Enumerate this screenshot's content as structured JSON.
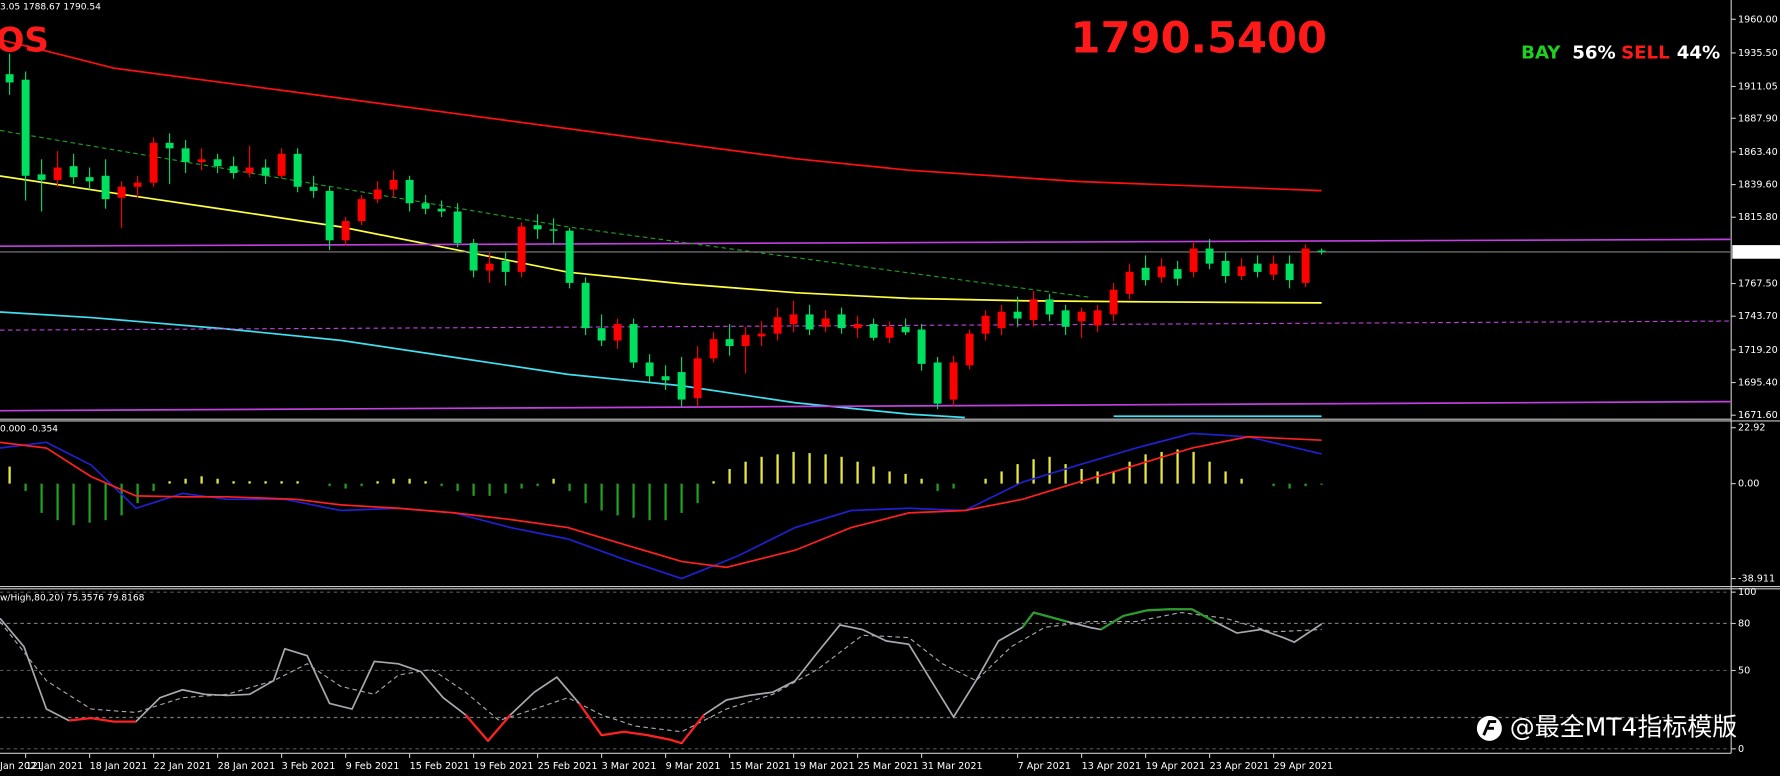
{
  "chart_data": [
    {
      "type": "candlestick",
      "header": "3.05 1788.67 1790.54",
      "symbol_text": "OS",
      "price_text": "1790.5400",
      "buy_label": "BAY",
      "buy_percent": "56%",
      "sell_label": "SELL",
      "sell_percent": "44%",
      "cut_date_label": "Jan 2021",
      "categories": [
        null,
        "12 Jan 2021",
        null,
        null,
        null,
        "18 Jan 2021",
        null,
        null,
        null,
        "22 Jan 2021",
        null,
        null,
        null,
        "28 Jan 2021",
        null,
        null,
        null,
        "3 Feb 2021",
        null,
        null,
        null,
        "9 Feb 2021",
        null,
        null,
        null,
        "15 Feb 2021",
        null,
        null,
        null,
        "19 Feb 2021",
        null,
        null,
        null,
        "25 Feb 2021",
        null,
        null,
        null,
        "3 Mar 2021",
        null,
        null,
        null,
        "9 Mar 2021",
        null,
        null,
        null,
        "15 Mar 2021",
        null,
        null,
        null,
        "19 Mar 2021",
        null,
        null,
        null,
        "25 Mar 2021",
        null,
        null,
        null,
        "31 Mar 2021",
        null,
        null,
        null,
        null,
        null,
        "7 Apr 2021",
        null,
        null,
        null,
        "13 Apr 2021",
        null,
        null,
        null,
        "19 Apr 2021",
        null,
        null,
        null,
        "23 Apr 2021",
        null,
        null,
        null,
        "29 Apr 2021",
        null,
        null,
        null
      ],
      "ohlc": [
        [
          1920,
          1935,
          1905,
          1914
        ],
        [
          1916,
          1922,
          1828,
          1846
        ],
        [
          1847,
          1858,
          1820,
          1843
        ],
        [
          1843,
          1864,
          1838,
          1852
        ],
        [
          1853,
          1862,
          1840,
          1845
        ],
        [
          1845,
          1852,
          1836,
          1842
        ],
        [
          1846,
          1858,
          1822,
          1829
        ],
        [
          1830,
          1842,
          1808,
          1838
        ],
        [
          1838,
          1846,
          1830,
          1841
        ],
        [
          1841,
          1874,
          1838,
          1870
        ],
        [
          1870,
          1877,
          1840,
          1866
        ],
        [
          1866,
          1872,
          1848,
          1856
        ],
        [
          1856,
          1866,
          1850,
          1858
        ],
        [
          1858,
          1862,
          1848,
          1853
        ],
        [
          1853,
          1860,
          1844,
          1848
        ],
        [
          1848,
          1868,
          1845,
          1852
        ],
        [
          1852,
          1858,
          1840,
          1846
        ],
        [
          1846,
          1866,
          1844,
          1862
        ],
        [
          1862,
          1866,
          1834,
          1838
        ],
        [
          1838,
          1846,
          1830,
          1835
        ],
        [
          1835,
          1838,
          1792,
          1799
        ],
        [
          1799,
          1816,
          1795,
          1813
        ],
        [
          1813,
          1832,
          1810,
          1829
        ],
        [
          1829,
          1842,
          1826,
          1836
        ],
        [
          1836,
          1850,
          1830,
          1843
        ],
        [
          1843,
          1846,
          1820,
          1826
        ],
        [
          1826,
          1832,
          1818,
          1822
        ],
        [
          1822,
          1828,
          1816,
          1820
        ],
        [
          1820,
          1826,
          1794,
          1797
        ],
        [
          1797,
          1800,
          1772,
          1777
        ],
        [
          1777,
          1790,
          1768,
          1782
        ],
        [
          1784,
          1790,
          1766,
          1776
        ],
        [
          1776,
          1812,
          1772,
          1809
        ],
        [
          1810,
          1818,
          1800,
          1807
        ],
        [
          1807,
          1815,
          1796,
          1806
        ],
        [
          1806,
          1808,
          1764,
          1768
        ],
        [
          1768,
          1772,
          1730,
          1735
        ],
        [
          1735,
          1745,
          1722,
          1726
        ],
        [
          1726,
          1742,
          1720,
          1738
        ],
        [
          1738,
          1742,
          1706,
          1710
        ],
        [
          1710,
          1716,
          1696,
          1700
        ],
        [
          1700,
          1708,
          1690,
          1697
        ],
        [
          1703,
          1714,
          1678,
          1683
        ],
        [
          1684,
          1722,
          1678,
          1713
        ],
        [
          1713,
          1732,
          1710,
          1727
        ],
        [
          1727,
          1738,
          1715,
          1722
        ],
        [
          1722,
          1736,
          1702,
          1730
        ],
        [
          1729,
          1740,
          1722,
          1731
        ],
        [
          1731,
          1750,
          1726,
          1743
        ],
        [
          1738,
          1755,
          1732,
          1745
        ],
        [
          1745,
          1752,
          1730,
          1734
        ],
        [
          1736,
          1748,
          1732,
          1742
        ],
        [
          1745,
          1750,
          1731,
          1735
        ],
        [
          1735,
          1744,
          1728,
          1738
        ],
        [
          1738,
          1742,
          1726,
          1728
        ],
        [
          1728,
          1740,
          1724,
          1736
        ],
        [
          1736,
          1742,
          1730,
          1732
        ],
        [
          1734,
          1738,
          1704,
          1709
        ],
        [
          1710,
          1714,
          1676,
          1680
        ],
        [
          1683,
          1715,
          1678,
          1710
        ],
        [
          1708,
          1734,
          1705,
          1731
        ],
        [
          1731,
          1748,
          1726,
          1744
        ],
        [
          1735,
          1752,
          1730,
          1747
        ],
        [
          1747,
          1758,
          1736,
          1742
        ],
        [
          1741,
          1762,
          1736,
          1756
        ],
        [
          1756,
          1760,
          1740,
          1745
        ],
        [
          1748,
          1752,
          1730,
          1736
        ],
        [
          1740,
          1750,
          1728,
          1747
        ],
        [
          1737,
          1752,
          1732,
          1748
        ],
        [
          1745,
          1768,
          1740,
          1763
        ],
        [
          1760,
          1782,
          1756,
          1776
        ],
        [
          1779,
          1788,
          1766,
          1770
        ],
        [
          1772,
          1786,
          1768,
          1780
        ],
        [
          1778,
          1784,
          1766,
          1771
        ],
        [
          1776,
          1798,
          1772,
          1793
        ],
        [
          1793,
          1800,
          1778,
          1782
        ],
        [
          1784,
          1790,
          1768,
          1773
        ],
        [
          1773,
          1786,
          1770,
          1780
        ],
        [
          1782,
          1788,
          1772,
          1776
        ],
        [
          1774,
          1788,
          1770,
          1782
        ],
        [
          1782,
          1788,
          1764,
          1770
        ],
        [
          1768,
          1796,
          1765,
          1793
        ],
        [
          1791.5,
          1793.05,
          1788.67,
          1790.54
        ]
      ],
      "up_color": "#ff0000",
      "down_color": "#00e060",
      "bid": 1790.54,
      "bid_color": "#808080",
      "lines": [
        {
          "color": "#ff1010",
          "x": [
            -0.6,
            2.3,
            6.5,
            17.2,
            27.8,
            38.4,
            49.1,
            56.2,
            66.8,
            82
          ],
          "values": [
            1945.1,
            1936.9,
            1924.5,
            1907.9,
            1891.4,
            1874.9,
            1858.4,
            1850.1,
            1841.8,
            1835.2
          ]
        },
        {
          "color": "#ffff40",
          "x": [
            -0.6,
            6.5,
            13.6,
            20.7,
            27.8,
            34.9,
            42,
            49.1,
            56.2,
            63.3,
            70.4,
            82
          ],
          "values": [
            1845.9,
            1833.4,
            1821.2,
            1808.8,
            1792.3,
            1775.8,
            1767.4,
            1760.8,
            1756.7,
            1755.0,
            1754.2,
            1753.4
          ]
        },
        {
          "color": "#40e0f0",
          "x": [
            -0.6,
            5.1,
            13.6,
            20.7,
            27.8,
            34.9,
            42,
            49.1,
            56.2,
            59.7,
            64,
            69,
            82
          ],
          "values": [
            1746.8,
            1742.7,
            1734.4,
            1726.1,
            1713.7,
            1701.3,
            1693.1,
            1680.7,
            1672.4,
            1669.9,
            null,
            1670.8,
            1670.8
          ]
        },
        {
          "color": "#c040e0",
          "x": [
            -0.6,
            107.6
          ],
          "values": [
            1794.7,
            1799.7
          ]
        },
        {
          "color": "#c040e0",
          "x": [
            -0.6,
            107.6
          ],
          "values": [
            1674.9,
            1681.5
          ]
        },
        {
          "color": "#c040e0",
          "dash": true,
          "x": [
            -0.6,
            107.6
          ],
          "values": [
            1733.6,
            1740.2
          ]
        },
        {
          "color": "#20a020",
          "dash": true,
          "x": [
            -0.6,
            34.9,
            67.5
          ],
          "values": [
            1879.0,
            1808.8,
            1757.5
          ]
        }
      ],
      "xlim": [
        -0.6,
        107.6
      ],
      "ylim": [
        1669.1,
        1974.05
      ],
      "yticks": [
        {
          "value": 1960,
          "label": "1960.00"
        },
        {
          "value": 1935.5,
          "label": "1935.50"
        },
        1911.05,
        {
          "value": 1887.9,
          "label": "1887.90"
        },
        {
          "value": 1863.4,
          "label": "1863.40"
        },
        {
          "value": 1839.6,
          "label": "1839.60"
        },
        {
          "value": 1815.8,
          "label": "1815.80"
        },
        {
          "value": 1767.5,
          "label": "1767.50"
        },
        {
          "value": 1743.7,
          "label": "1743.70"
        },
        {
          "value": 1719.2,
          "label": "1719.20"
        },
        {
          "value": 1695.4,
          "label": "1695.40"
        },
        {
          "value": 1671.6,
          "label": "1671.60"
        }
      ],
      "grid": false
    },
    {
      "type": "macd",
      "title": "0.000 -0.354",
      "histogram": [
        7,
        -3,
        -12,
        -15,
        -17,
        -16,
        -15,
        -13,
        -8,
        -3,
        1,
        2,
        3,
        2,
        1,
        1,
        1,
        1,
        1,
        0,
        -1,
        -2,
        -1,
        1,
        2,
        2,
        1,
        -1,
        -3,
        -5,
        -5,
        -4,
        -2,
        -1,
        2,
        -3,
        -8,
        -11,
        -13,
        -14,
        -15,
        -15,
        -12,
        -8,
        1,
        6,
        9,
        11,
        12,
        13,
        12.5,
        12,
        11,
        9,
        7,
        5,
        4,
        2,
        -3,
        -2,
        0,
        2,
        5,
        8,
        10,
        11,
        8,
        6,
        5,
        5,
        9,
        12,
        13,
        14,
        13,
        9,
        5,
        2,
        0,
        -1,
        -2,
        -1,
        -0.5
      ],
      "pos_color": "#e8e840",
      "neg_color": "#20a020",
      "series": [
        {
          "color": "#2020d0",
          "x": [
            -0.6,
            2.3,
            5.1,
            7.9,
            10.8,
            13.6,
            17.2,
            20.7,
            24.3,
            27.8,
            31.3,
            34.9,
            38.4,
            42,
            45.5,
            49.1,
            52.6,
            56.2,
            59.7,
            63.3,
            66.8,
            70.4,
            73.9,
            77.4,
            82
          ],
          "values": [
            14.6,
            16.9,
            7.6,
            -10.1,
            -4.0,
            -6.4,
            -6.4,
            -11.0,
            -10.1,
            -12.0,
            -18.0,
            -22.7,
            -31.0,
            -38.9,
            -29.7,
            -18.0,
            -11.0,
            -10.1,
            -11.0,
            0.6,
            7.6,
            14.6,
            20.6,
            19.2,
            12.2
          ]
        },
        {
          "color": "#ff2020",
          "x": [
            -0.6,
            2.3,
            5.1,
            7.9,
            10.8,
            13.6,
            17.9,
            20.7,
            24.3,
            27.8,
            31.3,
            34.9,
            38.4,
            42,
            44.8,
            49.1,
            52.6,
            56.2,
            59.7,
            63.3,
            66.8,
            70.4,
            73.9,
            77.4,
            82
          ],
          "values": [
            16.9,
            14.6,
            2.9,
            -5.0,
            -5.4,
            -5.4,
            -6.4,
            -8.7,
            -10.1,
            -12.0,
            -14.7,
            -18.0,
            -24.9,
            -31.9,
            -34.3,
            -27.3,
            -18.0,
            -12.0,
            -11.0,
            -6.4,
            0.6,
            7.6,
            14.6,
            19.2,
            17.8
          ]
        }
      ],
      "xlim": [
        -0.6,
        107.6
      ],
      "ylim": [
        -41.7,
        25.24
      ],
      "yticks": [
        22.92,
        {
          "value": 0,
          "label": "0.00"
        },
        -38.911
      ],
      "grid": false
    },
    {
      "type": "stochastic",
      "title": "w/High,80,20) 75.3576 79.8168",
      "levels": [
        80,
        20
      ],
      "overbought_color": "#2e9b2e",
      "oversold_color": "#ff2020",
      "series": [
        {
          "color": "#a8a8b0",
          "x": [
            -0.6,
            0.9,
            2.3,
            3.7,
            5.1,
            6.5,
            7.9,
            9.4,
            10.8,
            12.2,
            13.6,
            15,
            16.5,
            17.2,
            18.6,
            20,
            21.4,
            22.8,
            24.3,
            25.7,
            27.1,
            28.5,
            29.9,
            31.3,
            32.8,
            34.2,
            35.6,
            37,
            38.4,
            39.9,
            41.3,
            42,
            43.4,
            44.8,
            46.2,
            47.7,
            49.1,
            50.5,
            51.9,
            53.3,
            54.8,
            56.2,
            57.6,
            59,
            60.4,
            61.8,
            63.3,
            64,
            66.1,
            67.5,
            68.2,
            69.6,
            71.1,
            72.5,
            73.9,
            75.3,
            76.7,
            78.2,
            79.6,
            80.3,
            82
          ],
          "values": [
            83.3,
            65.2,
            25.4,
            18.1,
            19.6,
            17.4,
            17.4,
            32.6,
            37.7,
            34.8,
            34.1,
            34.8,
            43.5,
            63.8,
            59.4,
            29.0,
            25.4,
            55.8,
            54.3,
            49.3,
            32.6,
            21.7,
            5.1,
            21.7,
            36.2,
            45.7,
            29.0,
            8.7,
            10.9,
            8.7,
            5.8,
            3.6,
            21.7,
            31.2,
            34.1,
            36.2,
            43.5,
            61.6,
            79.0,
            76.1,
            68.8,
            66.7,
            43.5,
            20.3,
            43.5,
            68.8,
            77.5,
            87.0,
            81.2,
            77.5,
            76.1,
            84.8,
            88.4,
            89.1,
            89.1,
            81.2,
            73.9,
            76.1,
            71.0,
            68.1,
            79.7
          ]
        },
        {
          "color": "#a8a8b0",
          "dash": true,
          "x": [
            -0.6,
            2.3,
            5.1,
            7.9,
            10.8,
            13.6,
            16.5,
            18.6,
            20.7,
            22.8,
            24.3,
            26.4,
            28.5,
            30.6,
            32.8,
            34.9,
            37,
            39.1,
            42,
            44.8,
            47.7,
            50.5,
            53.3,
            56.2,
            58.3,
            60.4,
            62.6,
            64.7,
            67.5,
            70.4,
            73.2,
            76,
            78.9,
            82
          ],
          "values": [
            81.2,
            43.5,
            25.4,
            23.2,
            32.6,
            34.8,
            43.5,
            54.3,
            39.9,
            34.8,
            47.1,
            50.7,
            36.2,
            18.1,
            25.4,
            32.6,
            21.7,
            14.5,
            10.9,
            25.4,
            34.8,
            50.7,
            72.5,
            71.0,
            54.3,
            43.5,
            65.2,
            77.5,
            81.2,
            81.2,
            87.0,
            83.3,
            74.6,
            76.1
          ]
        }
      ],
      "xlim": [
        -0.6,
        107.6
      ],
      "ylim": [
        -1.4,
        101.4
      ],
      "yticks": [
        100,
        80,
        50,
        0
      ],
      "grid": true
    }
  ],
  "watermark": "@最全MT4指标模版"
}
